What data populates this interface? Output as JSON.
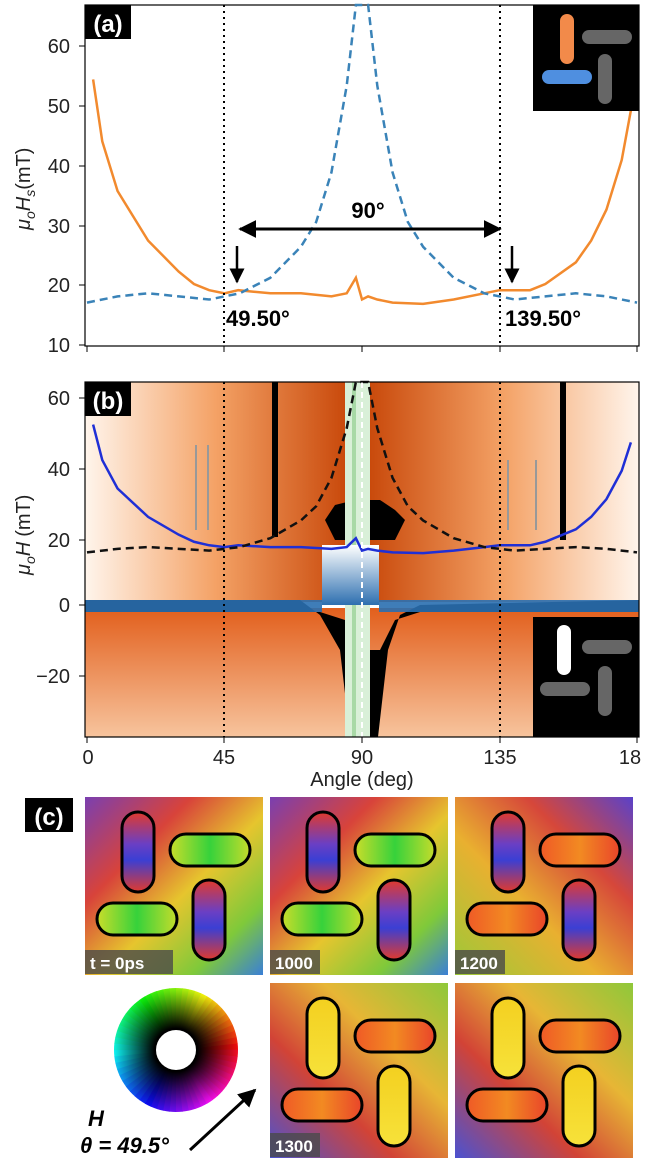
{
  "panel_a": {
    "tag": "(a)",
    "ylabel_main": "μ",
    "ylabel_sub": "o",
    "ylabel_var": "H",
    "ylabel_varsub": "s",
    "ylabel_unit": "(mT)",
    "yticks": [
      "10",
      "20",
      "30",
      "40",
      "50",
      "60"
    ],
    "ann_span": "90°",
    "ann_left": "49.50°",
    "ann_right": "139.50°",
    "colors": {
      "orange": "#f28a2e",
      "blue_dash": "#3a83b8"
    }
  },
  "panel_b": {
    "tag": "(b)",
    "ylabel_main": "μ",
    "ylabel_sub": "o",
    "ylabel_var": "H",
    "ylabel_unit": "(mT)",
    "yticks": [
      "60",
      "40",
      "20",
      "0",
      "−20"
    ],
    "xticks": [
      "0",
      "45",
      "90",
      "135",
      "18"
    ],
    "xlabel": "Angle (deg)",
    "colors": {
      "blue_line": "#1f2fd6",
      "black_dash": "#111111"
    }
  },
  "panel_c": {
    "tag": "(c)",
    "frame_labels": [
      "t = 0ps",
      "1000",
      "1200",
      "1300",
      ""
    ],
    "field_var": "H",
    "field_angle": "θ = 49.5°"
  },
  "chart_data": [
    {
      "type": "line",
      "title": "",
      "xlabel": "",
      "ylabel": "μoHs (mT)",
      "ylim": [
        10,
        65
      ],
      "xlim": [
        0,
        180
      ],
      "series": [
        {
          "values_x": [
            2,
            5,
            10,
            20,
            30,
            35,
            40,
            45,
            49.5,
            60,
            70,
            80,
            85,
            88,
            90,
            92,
            95,
            100,
            110,
            120,
            130,
            135,
            139.5,
            145,
            150,
            160,
            165,
            170,
            175,
            178
          ],
          "values_y": [
            53,
            43,
            35,
            27,
            22,
            20,
            19,
            18.5,
            19,
            18.5,
            18.5,
            18,
            18.5,
            21,
            17.5,
            18,
            17.5,
            17,
            16.8,
            17.5,
            18.5,
            19,
            19,
            19,
            20,
            23.5,
            27,
            32,
            40,
            48
          ]
        },
        {
          "values_x": [
            0,
            10,
            20,
            30,
            40,
            50,
            60,
            70,
            75,
            80,
            85,
            88,
            90,
            92,
            95,
            100,
            105,
            110,
            120,
            130,
            140,
            150,
            160,
            170,
            180
          ],
          "values_y": [
            17,
            18,
            18.5,
            18,
            17.5,
            18.5,
            21,
            26,
            30,
            38,
            52,
            65,
            65,
            65,
            52,
            38,
            30,
            26,
            21,
            18.5,
            17.5,
            18,
            18.5,
            18,
            17
          ]
        }
      ],
      "vlines": [
        45,
        135
      ]
    },
    {
      "type": "heatmap",
      "xlabel": "Angle (deg)",
      "ylabel": "μoH (mT)",
      "xlim": [
        0,
        180
      ],
      "ylim": [
        -35,
        65
      ],
      "vlines": [
        45,
        90,
        135
      ]
    }
  ]
}
